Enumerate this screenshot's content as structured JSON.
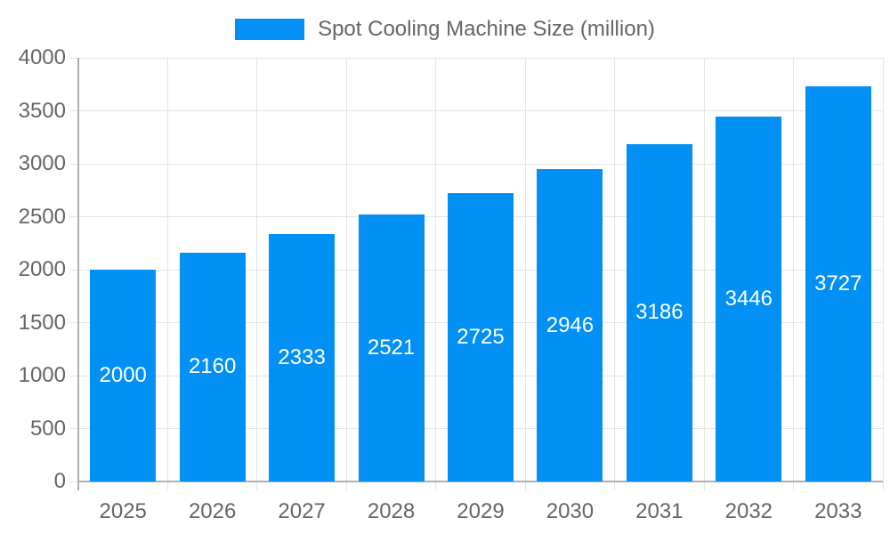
{
  "legend": {
    "label": "Spot Cooling Machine Size (million)"
  },
  "chart_data": {
    "type": "bar",
    "title": "",
    "categories": [
      "2025",
      "2026",
      "2027",
      "2028",
      "2029",
      "2030",
      "2031",
      "2032",
      "2033"
    ],
    "series": [
      {
        "name": "Spot Cooling Machine Size (million)",
        "values": [
          2000,
          2160,
          2333,
          2521,
          2725,
          2946,
          3186,
          3446,
          3727
        ]
      }
    ],
    "values": [
      2000,
      2160,
      2333,
      2521,
      2725,
      2946,
      3186,
      3446,
      3727
    ],
    "value_labels": [
      "2000",
      "2160",
      "2333",
      "2521",
      "2725",
      "2946",
      "3186",
      "3446",
      "3727"
    ],
    "xlabel": "",
    "ylabel": "",
    "ylim": [
      0,
      4000
    ],
    "yticks": [
      0,
      500,
      1000,
      1500,
      2000,
      2500,
      3000,
      3500,
      4000
    ],
    "grid": true,
    "legend_position": "top",
    "colors": {
      "bar": "#0290F5",
      "value_label": "#FFFFFF",
      "axis_text": "#666666",
      "grid_line": "#E5E5E5",
      "axis_line": "#B0B0B0"
    }
  }
}
